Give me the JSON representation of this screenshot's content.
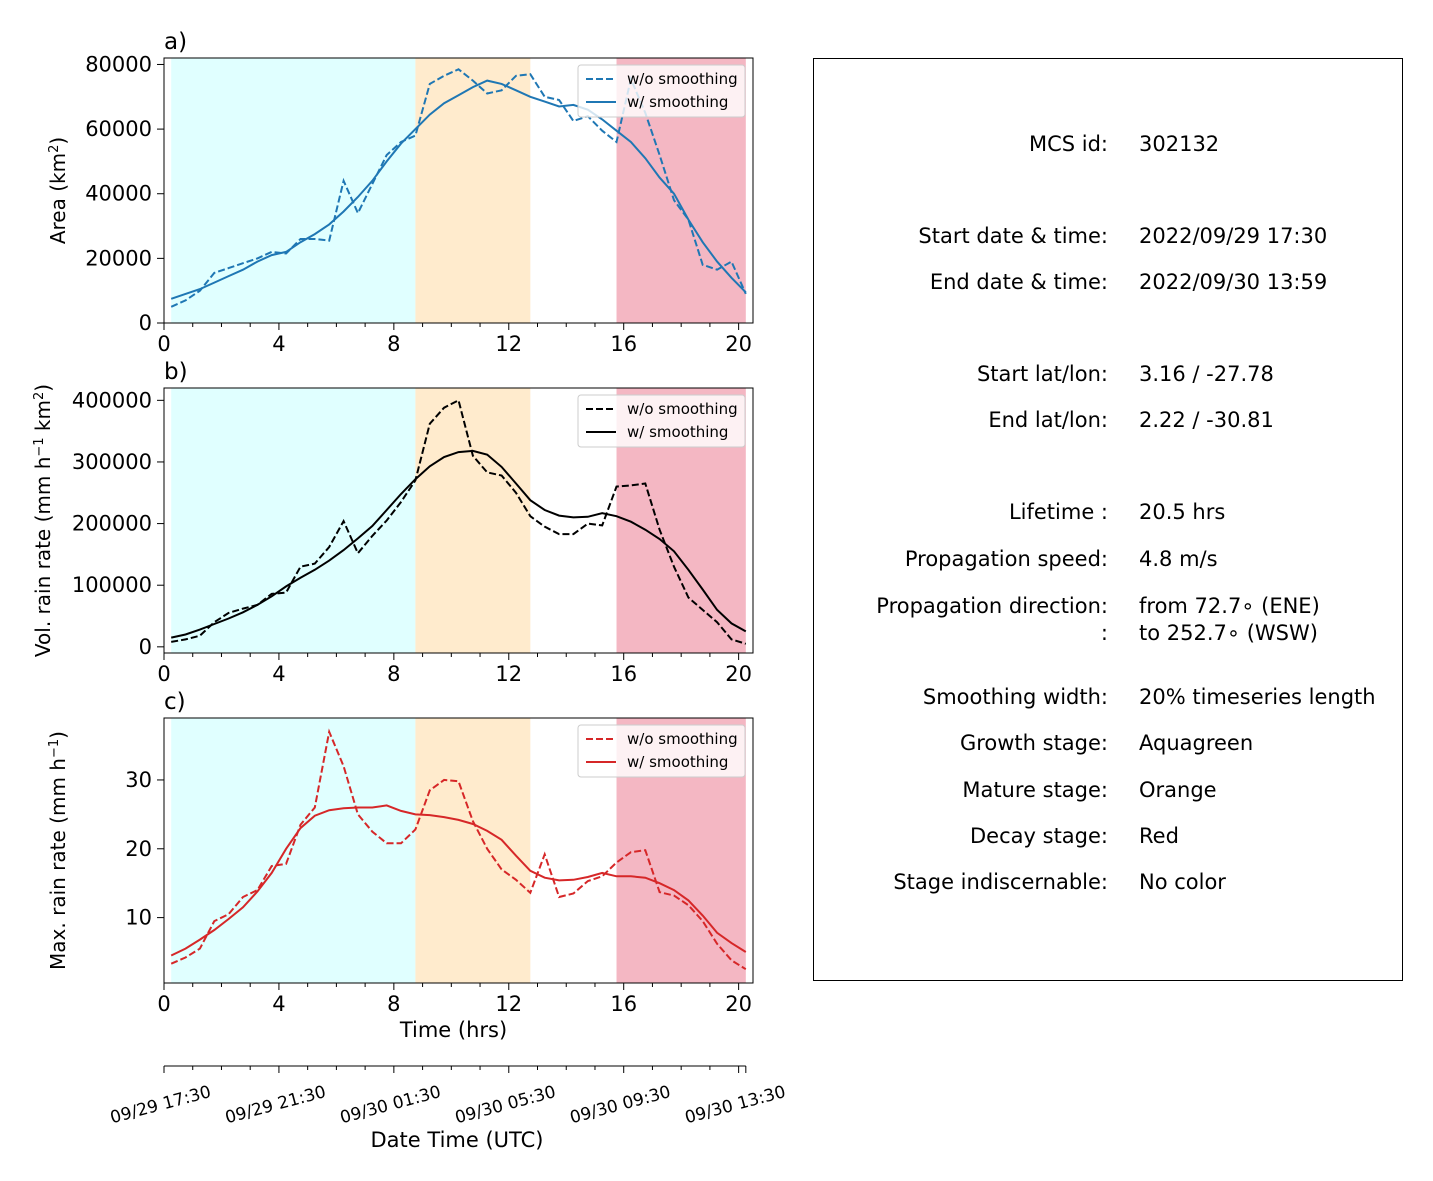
{
  "chart_data": [
    {
      "panel": "a)",
      "type": "line",
      "ylabel": "Area  (km²)",
      "ylabel_main": "Area  (km",
      "ylabel_sup": "2",
      "ylabel_tail": ")",
      "xlim": [
        0,
        20.5
      ],
      "ylim": [
        0,
        82000
      ],
      "yticks": [
        0,
        20000,
        40000,
        60000,
        80000
      ],
      "xticks": [
        0,
        4,
        8,
        12,
        16,
        20
      ],
      "legend_position": "top-right",
      "color": "#1f77b4",
      "series": [
        {
          "name": "w/o smoothing",
          "style": "dashed",
          "x": [
            0.25,
            0.75,
            1.25,
            1.75,
            2.25,
            2.75,
            3.25,
            3.75,
            4.25,
            4.75,
            5.25,
            5.75,
            6.25,
            6.75,
            7.25,
            7.75,
            8.25,
            8.75,
            9.25,
            9.75,
            10.25,
            10.75,
            11.25,
            11.75,
            12.25,
            12.75,
            13.25,
            13.75,
            14.25,
            14.75,
            15.25,
            15.75,
            16.25,
            16.75,
            17.25,
            17.75,
            18.25,
            18.75,
            19.25,
            19.75,
            20.25
          ],
          "y": [
            5000,
            7000,
            10000,
            15500,
            17000,
            18500,
            20000,
            22000,
            21500,
            26000,
            26000,
            25500,
            44000,
            34000,
            43000,
            52000,
            56000,
            58000,
            74000,
            76500,
            78500,
            75000,
            71000,
            72000,
            76500,
            77000,
            70000,
            69000,
            62500,
            64000,
            59500,
            56000,
            75500,
            65000,
            52000,
            38000,
            32000,
            18000,
            16500,
            19000,
            9000
          ]
        },
        {
          "name": "w/ smoothing",
          "style": "solid",
          "x": [
            0.25,
            0.75,
            1.25,
            1.75,
            2.25,
            2.75,
            3.25,
            3.75,
            4.25,
            4.75,
            5.25,
            5.75,
            6.25,
            6.75,
            7.25,
            7.75,
            8.25,
            8.75,
            9.25,
            9.75,
            10.25,
            10.75,
            11.25,
            11.75,
            12.25,
            12.75,
            13.25,
            13.75,
            14.25,
            14.75,
            15.25,
            15.75,
            16.25,
            16.75,
            17.25,
            17.75,
            18.25,
            18.75,
            19.25,
            19.75,
            20.25
          ],
          "y": [
            7500,
            9000,
            10500,
            12500,
            14500,
            16500,
            19000,
            21000,
            22000,
            25000,
            27500,
            30500,
            34500,
            39000,
            44000,
            50000,
            55500,
            60000,
            64500,
            68000,
            70500,
            73000,
            75000,
            74000,
            72000,
            70000,
            68500,
            67000,
            67500,
            66000,
            63000,
            59500,
            56000,
            51000,
            45000,
            40000,
            32000,
            25000,
            19000,
            14000,
            9500
          ]
        }
      ]
    },
    {
      "panel": "b)",
      "type": "line",
      "ylabel": "Vol. rain rate (mm h⁻¹ km²)",
      "ylabel_main": "Vol. rain rate (mm h",
      "ylabel_sup": "−1",
      "ylabel_mid": " km",
      "ylabel_sup2": "2",
      "ylabel_tail": ")",
      "xlim": [
        0,
        20.5
      ],
      "ylim": [
        -10000,
        420000
      ],
      "yticks": [
        0,
        100000,
        200000,
        300000,
        400000
      ],
      "xticks": [
        0,
        4,
        8,
        12,
        16,
        20
      ],
      "legend_position": "top-right",
      "color": "#000000",
      "series": [
        {
          "name": "w/o smoothing",
          "style": "dashed",
          "x": [
            0.25,
            0.75,
            1.25,
            1.75,
            2.25,
            2.75,
            3.25,
            3.75,
            4.25,
            4.75,
            5.25,
            5.75,
            6.25,
            6.75,
            7.25,
            7.75,
            8.25,
            8.75,
            9.25,
            9.75,
            10.25,
            10.75,
            11.25,
            11.75,
            12.25,
            12.75,
            13.25,
            13.75,
            14.25,
            14.75,
            15.25,
            15.75,
            16.25,
            16.75,
            17.25,
            17.75,
            18.25,
            18.75,
            19.25,
            19.75,
            20.25
          ],
          "y": [
            8000,
            12000,
            18000,
            40000,
            55000,
            62000,
            68000,
            86000,
            88000,
            130000,
            135000,
            162000,
            204000,
            152000,
            180000,
            205000,
            235000,
            270000,
            362000,
            388000,
            400000,
            310000,
            283000,
            278000,
            250000,
            212000,
            195000,
            183000,
            183000,
            200000,
            197000,
            260000,
            262000,
            265000,
            190000,
            130000,
            80000,
            60000,
            40000,
            12000,
            5000
          ]
        },
        {
          "name": "w/ smoothing",
          "style": "solid",
          "x": [
            0.25,
            0.75,
            1.25,
            1.75,
            2.25,
            2.75,
            3.25,
            3.75,
            4.25,
            4.75,
            5.25,
            5.75,
            6.25,
            6.75,
            7.25,
            7.75,
            8.25,
            8.75,
            9.25,
            9.75,
            10.25,
            10.75,
            11.25,
            11.75,
            12.25,
            12.75,
            13.25,
            13.75,
            14.25,
            14.75,
            15.25,
            15.75,
            16.25,
            16.75,
            17.25,
            17.75,
            18.25,
            18.75,
            19.25,
            19.75,
            20.25
          ],
          "y": [
            15000,
            20000,
            28000,
            37000,
            46000,
            56000,
            68000,
            82000,
            98000,
            112000,
            125000,
            140000,
            157000,
            176000,
            196000,
            222000,
            248000,
            272000,
            293000,
            308000,
            316000,
            318000,
            312000,
            292000,
            265000,
            238000,
            222000,
            213000,
            210000,
            211000,
            217000,
            212000,
            203000,
            190000,
            175000,
            155000,
            125000,
            93000,
            60000,
            38000,
            25000
          ]
        }
      ]
    },
    {
      "panel": "c)",
      "type": "line",
      "ylabel": "Max. rain rate  (mm h⁻¹)",
      "ylabel_main": "Max. rain rate  (mm h",
      "ylabel_sup": "−1",
      "ylabel_tail": ")",
      "xlabel": "Time (hrs)",
      "xlim": [
        0,
        20.5
      ],
      "ylim": [
        0.5,
        39
      ],
      "yticks": [
        10,
        20,
        30
      ],
      "xticks": [
        0,
        4,
        8,
        12,
        16,
        20
      ],
      "legend_position": "top-right",
      "color": "#d62728",
      "series": [
        {
          "name": "w/o smoothing",
          "style": "dashed",
          "x": [
            0.25,
            0.75,
            1.25,
            1.75,
            2.25,
            2.75,
            3.25,
            3.75,
            4.25,
            4.75,
            5.25,
            5.75,
            6.25,
            6.75,
            7.25,
            7.75,
            8.25,
            8.75,
            9.25,
            9.75,
            10.25,
            10.75,
            11.25,
            11.75,
            12.25,
            12.75,
            13.25,
            13.75,
            14.25,
            14.75,
            15.25,
            15.75,
            16.25,
            16.75,
            17.25,
            17.75,
            18.25,
            18.75,
            19.25,
            19.75,
            20.25
          ],
          "y": [
            3.3,
            4.2,
            5.5,
            9.5,
            10.5,
            13,
            14,
            17.5,
            17.8,
            23.5,
            26,
            37,
            32,
            25,
            22.5,
            20.8,
            20.8,
            22.8,
            28.5,
            30,
            29.8,
            24,
            20,
            17,
            15.5,
            13.6,
            19.2,
            13,
            13.5,
            15.3,
            16,
            18,
            19.5,
            19.8,
            13.7,
            13.2,
            11.8,
            9.5,
            6.2,
            3.8,
            2.5
          ]
        },
        {
          "name": "w/ smoothing",
          "style": "solid",
          "x": [
            0.25,
            0.75,
            1.25,
            1.75,
            2.25,
            2.75,
            3.25,
            3.75,
            4.25,
            4.75,
            5.25,
            5.75,
            6.25,
            6.75,
            7.25,
            7.75,
            8.25,
            8.75,
            9.25,
            9.75,
            10.25,
            10.75,
            11.25,
            11.75,
            12.25,
            12.75,
            13.25,
            13.75,
            14.25,
            14.75,
            15.25,
            15.75,
            16.25,
            16.75,
            17.25,
            17.75,
            18.25,
            18.75,
            19.25,
            19.75,
            20.25
          ],
          "y": [
            4.5,
            5.5,
            6.8,
            8.2,
            9.8,
            11.5,
            13.8,
            16.5,
            20,
            23,
            24.8,
            25.6,
            25.9,
            26,
            26,
            26.3,
            25.5,
            25,
            24.9,
            24.6,
            24.2,
            23.6,
            22.6,
            21.3,
            19,
            16.8,
            15.8,
            15.4,
            15.5,
            15.9,
            16.5,
            16,
            16,
            15.8,
            15,
            14,
            12.5,
            10.3,
            7.8,
            6.3,
            5
          ]
        }
      ]
    }
  ],
  "stages": [
    {
      "name": "growth",
      "start": 0.25,
      "end": 8.75,
      "color": "#e0ffff"
    },
    {
      "name": "mature",
      "start": 8.75,
      "end": 12.75,
      "color": "#ffebcd"
    },
    {
      "name": "decay",
      "start": 15.75,
      "end": 20.25,
      "color": "#f4b7c3"
    }
  ],
  "datetime_axis": {
    "label": "Date Time (UTC)",
    "ticks": [
      {
        "x": 0,
        "label": "09/29 17:30"
      },
      {
        "x": 4,
        "label": "09/29 21:30"
      },
      {
        "x": 8,
        "label": "09/30 01:30"
      },
      {
        "x": 12,
        "label": "09/30 05:30"
      },
      {
        "x": 16,
        "label": "09/30 09:30"
      },
      {
        "x": 20,
        "label": "09/30 13:30"
      }
    ]
  },
  "info": {
    "rows": [
      {
        "label": "MCS id:",
        "value": "302132"
      },
      {
        "label": "Start date & time:",
        "value": "2022/09/29 17:30"
      },
      {
        "label": "End date & time:",
        "value": "2022/09/30 13:59"
      },
      {
        "label": "Start lat/lon:",
        "value": "3.16 / -27.78"
      },
      {
        "label": "End lat/lon:",
        "value": "2.22 / -30.81"
      },
      {
        "label": "Lifetime :",
        "value": "20.5 hrs"
      },
      {
        "label": "Propagation speed:",
        "value": "4.8 m/s"
      },
      {
        "label": "Propagation direction:",
        "value": "from  72.7∘ (ENE)"
      },
      {
        "label": ":",
        "value": "to   252.7∘ (WSW)"
      },
      {
        "label": "Smoothing width:",
        "value": "20% timeseries length"
      },
      {
        "label": "Growth stage:",
        "value": "Aquagreen"
      },
      {
        "label": "Mature stage:",
        "value": "Orange"
      },
      {
        "label": "Decay stage:",
        "value": "Red"
      },
      {
        "label": "Stage indiscernable:",
        "value": "No color"
      }
    ]
  }
}
